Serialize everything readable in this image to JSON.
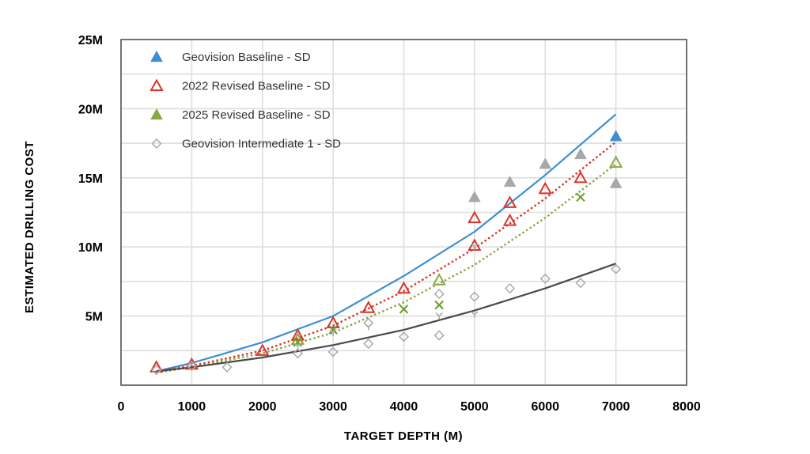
{
  "chart_data": {
    "type": "scatter",
    "xlabel": "TARGET DEPTH (M)",
    "ylabel": "ESTIMATED DRILLING COST",
    "xlim": [
      0,
      8000
    ],
    "ylim": [
      0,
      25
    ],
    "x_ticks": [
      "0",
      "1000",
      "2000",
      "3000",
      "4000",
      "5000",
      "6000",
      "7000",
      "8000"
    ],
    "y_ticks": [
      {
        "value": 5,
        "label": "5M"
      },
      {
        "value": 10,
        "label": "10M"
      },
      {
        "value": 15,
        "label": "15M"
      },
      {
        "value": 20,
        "label": "20M"
      },
      {
        "value": 25,
        "label": "25M"
      }
    ],
    "grid": true,
    "legend_position": "top-left",
    "legend": [
      {
        "label": "Geovision Baseline - SD",
        "marker": "filled-triangle",
        "color": "#3d8fd1"
      },
      {
        "label": "2022 Revised Baseline - SD",
        "marker": "open-triangle",
        "color": "#d9352a"
      },
      {
        "label": "2025 Revised Baseline - SD",
        "marker": "filled-triangle",
        "color": "#8aa843"
      },
      {
        "label": "Geovision Intermediate 1 - SD",
        "marker": "open-diamond",
        "color": "#aaaaaa"
      }
    ],
    "series": [
      {
        "name": "Geovision Baseline - SD",
        "marker": "filled-triangle",
        "color": "#3d8fd1",
        "points": [
          [
            7000,
            18.0
          ]
        ]
      },
      {
        "name": "",
        "marker": "filled-triangle",
        "color": "#a8a8a8",
        "points": [
          [
            5000,
            13.6
          ],
          [
            5500,
            14.7
          ],
          [
            6000,
            16.0
          ],
          [
            6500,
            16.7
          ],
          [
            7000,
            14.6
          ]
        ]
      },
      {
        "name": "2022 Revised Baseline - SD",
        "marker": "open-triangle",
        "color": "#d9352a",
        "points": [
          [
            500,
            1.3
          ],
          [
            1000,
            1.5
          ],
          [
            2000,
            2.5
          ],
          [
            2500,
            3.6
          ],
          [
            3000,
            4.5
          ],
          [
            3500,
            5.6
          ],
          [
            4000,
            7.0
          ],
          [
            5000,
            10.1
          ],
          [
            5000,
            12.1
          ],
          [
            5500,
            11.9
          ],
          [
            5500,
            13.2
          ],
          [
            6000,
            14.2
          ],
          [
            6500,
            15.0
          ]
        ]
      },
      {
        "name": "2025 Revised Baseline - SD",
        "marker": "open-triangle",
        "color": "#8aa843",
        "points": [
          [
            2500,
            3.3
          ],
          [
            4500,
            7.6
          ],
          [
            7000,
            16.1
          ]
        ]
      },
      {
        "name": "",
        "marker": "x",
        "color": "#6e9a2a",
        "points": [
          [
            2500,
            3.1
          ],
          [
            3000,
            4.0
          ],
          [
            4000,
            5.5
          ],
          [
            4500,
            5.8
          ],
          [
            6500,
            13.6
          ]
        ]
      },
      {
        "name": "Geovision Intermediate 1 - SD",
        "marker": "open-diamond",
        "color": "#aaaaaa",
        "points": [
          [
            500,
            1.1
          ],
          [
            1000,
            1.4
          ],
          [
            1500,
            1.3
          ],
          [
            2500,
            2.3
          ],
          [
            3000,
            2.4
          ],
          [
            3500,
            3.0
          ],
          [
            3500,
            4.5
          ],
          [
            4000,
            3.5
          ],
          [
            4500,
            3.6
          ],
          [
            4500,
            6.6
          ],
          [
            5000,
            6.4
          ],
          [
            5500,
            7.0
          ],
          [
            6000,
            7.7
          ],
          [
            6500,
            7.4
          ],
          [
            7000,
            8.4
          ]
        ]
      },
      {
        "name": "",
        "marker": "y-small",
        "color": "#aaaaaa",
        "points": [
          [
            2500,
            2.8
          ],
          [
            3000,
            3.8
          ],
          [
            3500,
            4.2
          ],
          [
            4500,
            5.0
          ],
          [
            5000,
            5.1
          ],
          [
            5000,
            10.0
          ]
        ]
      }
    ],
    "trendlines": [
      {
        "series": "Geovision Baseline - SD",
        "color": "#3d8fd1",
        "style": "solid",
        "x": [
          500,
          1000,
          2000,
          3000,
          4000,
          5000,
          6000,
          7000
        ],
        "y": [
          1.0,
          1.6,
          3.1,
          5.0,
          7.9,
          11.1,
          15.2,
          19.6
        ]
      },
      {
        "series": "2022 Revised Baseline - SD",
        "color": "#d9352a",
        "style": "dotted",
        "x": [
          500,
          1000,
          2000,
          3000,
          4000,
          5000,
          6000,
          7000
        ],
        "y": [
          1.0,
          1.4,
          2.5,
          4.3,
          6.8,
          9.9,
          13.5,
          17.6
        ]
      },
      {
        "series": "2025 Revised Baseline - SD",
        "color": "#8aa843",
        "style": "dotted",
        "x": [
          500,
          1000,
          2000,
          3000,
          4000,
          5000,
          6000,
          7000
        ],
        "y": [
          0.9,
          1.3,
          2.3,
          3.8,
          6.0,
          8.7,
          12.1,
          16.0
        ]
      },
      {
        "series": "Geovision Intermediate 1 - SD",
        "color": "#4a4a4a",
        "style": "solid",
        "x": [
          500,
          1000,
          2000,
          3000,
          4000,
          5000,
          6000,
          7000
        ],
        "y": [
          1.0,
          1.3,
          2.0,
          2.9,
          4.0,
          5.4,
          7.0,
          8.8
        ]
      }
    ]
  }
}
